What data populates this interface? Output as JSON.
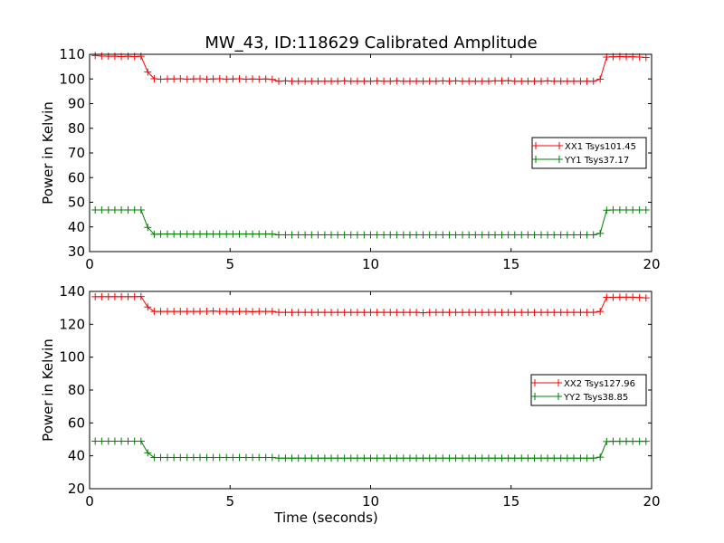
{
  "title": "MW_43, ID:118629 Calibrated Amplitude",
  "colors": {
    "xx": "#ff0000",
    "yy": "#008000",
    "frame": "#000000",
    "background": "#ffffff"
  },
  "chart_data": [
    {
      "type": "line",
      "title": "MW_43, ID:118629 Calibrated Amplitude",
      "xlabel": "",
      "ylabel": "Power in Kelvin",
      "xlim": [
        0,
        20
      ],
      "ylim": [
        30,
        110
      ],
      "xticks": [
        "0",
        "5",
        "10",
        "15",
        "20"
      ],
      "yticks": [
        "30",
        "40",
        "50",
        "60",
        "70",
        "80",
        "90",
        "100",
        "110"
      ],
      "grid": false,
      "legend_position": "center-right",
      "marker": "plus",
      "series": [
        {
          "name": "XX1 Tsys101.45",
          "color": "#ff0000",
          "x": [
            0.2,
            0.43,
            0.67,
            0.9,
            1.13,
            1.37,
            1.6,
            1.83,
            2.07,
            2.3,
            2.53,
            2.77,
            3.0,
            3.23,
            3.47,
            3.7,
            3.93,
            4.17,
            4.4,
            4.63,
            4.87,
            5.1,
            5.33,
            5.57,
            5.8,
            6.03,
            6.27,
            6.5,
            6.73,
            6.97,
            7.2,
            7.43,
            7.67,
            7.9,
            8.13,
            8.37,
            8.6,
            8.83,
            9.07,
            9.3,
            9.53,
            9.77,
            10.0,
            10.23,
            10.47,
            10.7,
            10.93,
            11.17,
            11.4,
            11.63,
            11.87,
            12.1,
            12.33,
            12.57,
            12.8,
            13.03,
            13.27,
            13.5,
            13.73,
            13.97,
            14.2,
            14.43,
            14.67,
            14.9,
            15.13,
            15.37,
            15.6,
            15.83,
            16.07,
            16.3,
            16.53,
            16.77,
            17.0,
            17.23,
            17.47,
            17.7,
            17.93,
            18.17,
            18.4,
            18.63,
            18.87,
            19.1,
            19.33,
            19.57,
            19.8
          ],
          "y": [
            109.5,
            109.3,
            109.2,
            109.2,
            109.1,
            109.2,
            109.1,
            109.2,
            102.8,
            100.1,
            99.9,
            100.0,
            100.0,
            100.1,
            99.9,
            100.0,
            100.1,
            99.9,
            100.0,
            100.1,
            99.9,
            100.0,
            100.1,
            99.9,
            100.0,
            99.9,
            100.0,
            99.8,
            99.1,
            99.2,
            99.1,
            99.1,
            99.1,
            99.1,
            99.1,
            99.1,
            99.1,
            99.1,
            99.2,
            99.1,
            99.1,
            99.1,
            99.1,
            99.2,
            99.1,
            99.1,
            99.2,
            99.1,
            99.1,
            99.1,
            99.1,
            99.1,
            99.1,
            99.2,
            99.1,
            99.2,
            99.1,
            99.1,
            99.1,
            99.1,
            99.1,
            99.2,
            99.2,
            99.3,
            99.1,
            99.1,
            99.1,
            99.1,
            99.1,
            99.2,
            99.1,
            99.1,
            99.1,
            99.1,
            99.1,
            99.1,
            99.1,
            99.9,
            108.9,
            109.0,
            109.1,
            109.0,
            109.0,
            108.9,
            108.7
          ]
        },
        {
          "name": "YY1 Tsys37.17",
          "color": "#008000",
          "x": [
            0.2,
            0.43,
            0.67,
            0.9,
            1.13,
            1.37,
            1.6,
            1.83,
            2.07,
            2.3,
            2.53,
            2.77,
            3.0,
            3.23,
            3.47,
            3.7,
            3.93,
            4.17,
            4.4,
            4.63,
            4.87,
            5.1,
            5.33,
            5.57,
            5.8,
            6.03,
            6.27,
            6.5,
            6.73,
            6.97,
            7.2,
            7.43,
            7.67,
            7.9,
            8.13,
            8.37,
            8.6,
            8.83,
            9.07,
            9.3,
            9.53,
            9.77,
            10.0,
            10.23,
            10.47,
            10.7,
            10.93,
            11.17,
            11.4,
            11.63,
            11.87,
            12.1,
            12.33,
            12.57,
            12.8,
            13.03,
            13.27,
            13.5,
            13.73,
            13.97,
            14.2,
            14.43,
            14.67,
            14.9,
            15.13,
            15.37,
            15.6,
            15.83,
            16.07,
            16.3,
            16.53,
            16.77,
            17.0,
            17.23,
            17.47,
            17.7,
            17.93,
            18.17,
            18.4,
            18.63,
            18.87,
            19.1,
            19.33,
            19.57,
            19.8
          ],
          "y": [
            46.9,
            46.9,
            46.9,
            46.9,
            46.9,
            46.9,
            46.9,
            46.9,
            39.8,
            37.0,
            37.1,
            37.1,
            37.1,
            37.1,
            37.1,
            37.1,
            37.1,
            37.1,
            37.1,
            37.1,
            37.1,
            37.1,
            37.1,
            37.1,
            37.1,
            37.1,
            37.1,
            37.1,
            36.8,
            36.8,
            36.8,
            36.8,
            36.8,
            36.8,
            36.8,
            36.8,
            36.8,
            36.8,
            36.8,
            36.8,
            36.8,
            36.8,
            36.8,
            36.8,
            36.8,
            36.8,
            36.8,
            36.8,
            36.8,
            36.8,
            36.8,
            36.8,
            36.8,
            36.8,
            36.8,
            36.8,
            36.8,
            36.8,
            36.8,
            36.8,
            36.8,
            36.8,
            36.8,
            36.8,
            36.8,
            36.8,
            36.8,
            36.8,
            36.8,
            36.8,
            36.8,
            36.8,
            36.8,
            36.8,
            36.8,
            36.8,
            36.8,
            37.4,
            46.8,
            46.9,
            46.9,
            46.9,
            46.9,
            46.9,
            46.9
          ]
        }
      ]
    },
    {
      "type": "line",
      "title": "",
      "xlabel": "Time (seconds)",
      "ylabel": "Power in Kelvin",
      "xlim": [
        0,
        20
      ],
      "ylim": [
        20,
        140
      ],
      "xticks": [
        "0",
        "5",
        "10",
        "15",
        "20"
      ],
      "yticks": [
        "20",
        "40",
        "60",
        "80",
        "100",
        "120",
        "140"
      ],
      "grid": false,
      "legend_position": "center-right",
      "marker": "plus",
      "series": [
        {
          "name": "XX2 Tsys127.96",
          "color": "#ff0000",
          "x": [
            0.2,
            0.43,
            0.67,
            0.9,
            1.13,
            1.37,
            1.6,
            1.83,
            2.07,
            2.3,
            2.53,
            2.77,
            3.0,
            3.23,
            3.47,
            3.7,
            3.93,
            4.17,
            4.4,
            4.63,
            4.87,
            5.1,
            5.33,
            5.57,
            5.8,
            6.03,
            6.27,
            6.5,
            6.73,
            6.97,
            7.2,
            7.43,
            7.67,
            7.9,
            8.13,
            8.37,
            8.6,
            8.83,
            9.07,
            9.3,
            9.53,
            9.77,
            10.0,
            10.23,
            10.47,
            10.7,
            10.93,
            11.17,
            11.4,
            11.63,
            11.87,
            12.1,
            12.33,
            12.57,
            12.8,
            13.03,
            13.27,
            13.5,
            13.73,
            13.97,
            14.2,
            14.43,
            14.67,
            14.9,
            15.13,
            15.37,
            15.6,
            15.83,
            16.07,
            16.3,
            16.53,
            16.77,
            17.0,
            17.23,
            17.47,
            17.7,
            17.93,
            18.17,
            18.4,
            18.63,
            18.87,
            19.1,
            19.33,
            19.57,
            19.8
          ],
          "y": [
            136.8,
            136.8,
            136.8,
            136.8,
            136.8,
            136.8,
            136.8,
            136.9,
            130.5,
            127.8,
            127.8,
            127.8,
            127.8,
            127.8,
            127.8,
            127.8,
            127.8,
            127.9,
            128.0,
            127.8,
            127.8,
            127.7,
            127.8,
            127.8,
            127.7,
            127.8,
            127.8,
            127.8,
            127.3,
            127.3,
            127.3,
            127.3,
            127.3,
            127.3,
            127.3,
            127.3,
            127.3,
            127.3,
            127.3,
            127.3,
            127.3,
            127.3,
            127.3,
            127.3,
            127.3,
            127.3,
            127.3,
            127.3,
            127.3,
            127.3,
            127.0,
            127.3,
            127.3,
            127.3,
            127.3,
            127.3,
            127.3,
            127.3,
            127.3,
            127.3,
            127.3,
            127.3,
            127.3,
            127.3,
            127.3,
            127.3,
            127.3,
            127.3,
            127.3,
            127.3,
            127.3,
            127.3,
            127.3,
            127.3,
            127.3,
            127.3,
            127.3,
            127.8,
            136.4,
            136.4,
            136.5,
            136.5,
            136.5,
            136.3,
            136.1
          ]
        },
        {
          "name": "YY2 Tsys38.85",
          "color": "#008000",
          "x": [
            0.2,
            0.43,
            0.67,
            0.9,
            1.13,
            1.37,
            1.6,
            1.83,
            2.07,
            2.3,
            2.53,
            2.77,
            3.0,
            3.23,
            3.47,
            3.7,
            3.93,
            4.17,
            4.4,
            4.63,
            4.87,
            5.1,
            5.33,
            5.57,
            5.8,
            6.03,
            6.27,
            6.5,
            6.73,
            6.97,
            7.2,
            7.43,
            7.67,
            7.9,
            8.13,
            8.37,
            8.6,
            8.83,
            9.07,
            9.3,
            9.53,
            9.77,
            10.0,
            10.23,
            10.47,
            10.7,
            10.93,
            11.17,
            11.4,
            11.63,
            11.87,
            12.1,
            12.33,
            12.57,
            12.8,
            13.03,
            13.27,
            13.5,
            13.73,
            13.97,
            14.2,
            14.43,
            14.67,
            14.9,
            15.13,
            15.37,
            15.6,
            15.83,
            16.07,
            16.3,
            16.53,
            16.77,
            17.0,
            17.23,
            17.47,
            17.7,
            17.93,
            18.17,
            18.4,
            18.63,
            18.87,
            19.1,
            19.33,
            19.57,
            19.8
          ],
          "y": [
            48.9,
            48.9,
            48.9,
            48.9,
            48.9,
            48.9,
            48.9,
            48.9,
            41.8,
            39.0,
            39.0,
            39.0,
            39.0,
            39.0,
            39.0,
            39.0,
            39.0,
            39.0,
            39.0,
            39.0,
            39.0,
            39.0,
            39.0,
            39.0,
            39.0,
            39.0,
            39.0,
            39.0,
            38.6,
            38.6,
            38.6,
            38.6,
            38.6,
            38.6,
            38.6,
            38.6,
            38.6,
            38.6,
            38.6,
            38.6,
            38.6,
            38.6,
            38.6,
            38.6,
            38.6,
            38.6,
            38.6,
            38.6,
            38.6,
            38.6,
            38.6,
            38.6,
            38.6,
            38.6,
            38.6,
            38.6,
            38.6,
            38.6,
            38.6,
            38.6,
            38.6,
            38.6,
            38.6,
            38.6,
            38.6,
            38.6,
            38.6,
            38.6,
            38.6,
            38.6,
            38.6,
            38.6,
            38.6,
            38.6,
            38.6,
            38.6,
            38.6,
            39.2,
            48.7,
            48.8,
            48.8,
            48.8,
            48.8,
            48.8,
            48.8
          ]
        }
      ]
    }
  ]
}
